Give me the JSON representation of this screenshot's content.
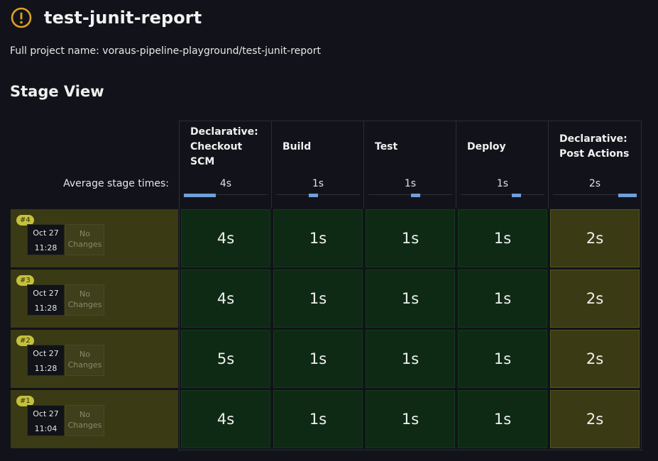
{
  "header": {
    "title": "test-junit-report",
    "full_name": "Full project name: voraus-pipeline-playground/test-junit-report",
    "warning_icon": "exclamation-circle-icon",
    "warning_color": "#e0a020"
  },
  "stage_view": {
    "title": "Stage View",
    "avg_label": "Average stage times:",
    "stages": [
      {
        "name": "Declarative: Checkout SCM",
        "avg": "4s",
        "avg_share": 0.38
      },
      {
        "name": "Build",
        "avg": "1s",
        "avg_share": 0.11
      },
      {
        "name": "Test",
        "avg": "1s",
        "avg_share": 0.11
      },
      {
        "name": "Deploy",
        "avg": "1s",
        "avg_share": 0.11
      },
      {
        "name": "Declarative: Post Actions",
        "avg": "2s",
        "avg_share": 0.22
      }
    ],
    "runs": [
      {
        "number": "#4",
        "date": "Oct 27",
        "time": "11:28",
        "changes": "No Changes",
        "status": "unstable",
        "cells": [
          "4s",
          "1s",
          "1s",
          "1s",
          "2s"
        ],
        "cell_status": [
          "success",
          "success",
          "success",
          "success",
          "unstable"
        ]
      },
      {
        "number": "#3",
        "date": "Oct 27",
        "time": "11:28",
        "changes": "No Changes",
        "status": "unstable",
        "cells": [
          "4s",
          "1s",
          "1s",
          "1s",
          "2s"
        ],
        "cell_status": [
          "success",
          "success",
          "success",
          "success",
          "unstable"
        ]
      },
      {
        "number": "#2",
        "date": "Oct 27",
        "time": "11:28",
        "changes": "No Changes",
        "status": "unstable",
        "cells": [
          "5s",
          "1s",
          "1s",
          "1s",
          "2s"
        ],
        "cell_status": [
          "success",
          "success",
          "success",
          "success",
          "unstable"
        ]
      },
      {
        "number": "#1",
        "date": "Oct 27",
        "time": "11:04",
        "changes": "No Changes",
        "status": "unstable",
        "cells": [
          "4s",
          "1s",
          "1s",
          "1s",
          "2s"
        ],
        "cell_status": [
          "success",
          "success",
          "success",
          "success",
          "unstable"
        ]
      }
    ]
  },
  "colors": {
    "success": "#0e2a14",
    "unstable": "#3a3a14",
    "badge": "#c5c13d",
    "avg_bar": "#6f9fdc"
  }
}
